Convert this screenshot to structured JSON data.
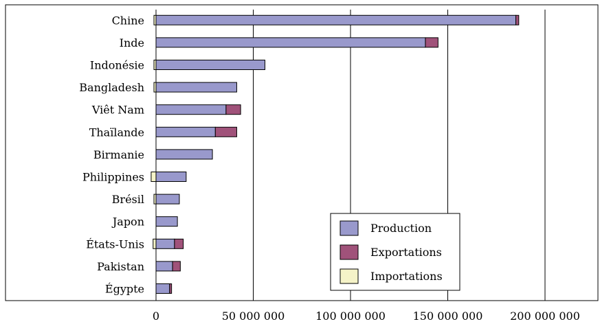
{
  "chart_data": {
    "type": "bar",
    "orientation": "horizontal",
    "stacked": true,
    "categories": [
      "Chine",
      "Inde",
      "Indonésie",
      "Bangladesh",
      "Viêt Nam",
      "Thaïlande",
      "Birmanie",
      "Philippines",
      "Brésil",
      "Japon",
      "États-Unis",
      "Pakistan",
      "Égypte"
    ],
    "series": [
      {
        "name": "Production",
        "color": "#9999cc",
        "values": [
          185000000,
          138500000,
          56000000,
          41500000,
          36000000,
          30500000,
          29000000,
          15500000,
          12000000,
          11000000,
          9500000,
          8500000,
          7000000
        ]
      },
      {
        "name": "Exportations",
        "color": "#a0527a",
        "values": [
          1500000,
          6500000,
          0,
          0,
          7500000,
          11000000,
          0,
          0,
          0,
          0,
          4500000,
          4000000,
          1000000
        ]
      },
      {
        "name": "Importations",
        "color": "#f5f3c8",
        "values": [
          1000000,
          0,
          500000,
          1000000,
          0,
          0,
          0,
          2500000,
          500000,
          0,
          1500000,
          0,
          0
        ]
      }
    ],
    "xticks": [
      "0",
      "50 000 000",
      "100 000 000",
      "150 000 000",
      "200 000 000"
    ],
    "xlim": [
      0,
      200000000
    ],
    "grid": "vertical",
    "legend_position": "bottom-right"
  }
}
